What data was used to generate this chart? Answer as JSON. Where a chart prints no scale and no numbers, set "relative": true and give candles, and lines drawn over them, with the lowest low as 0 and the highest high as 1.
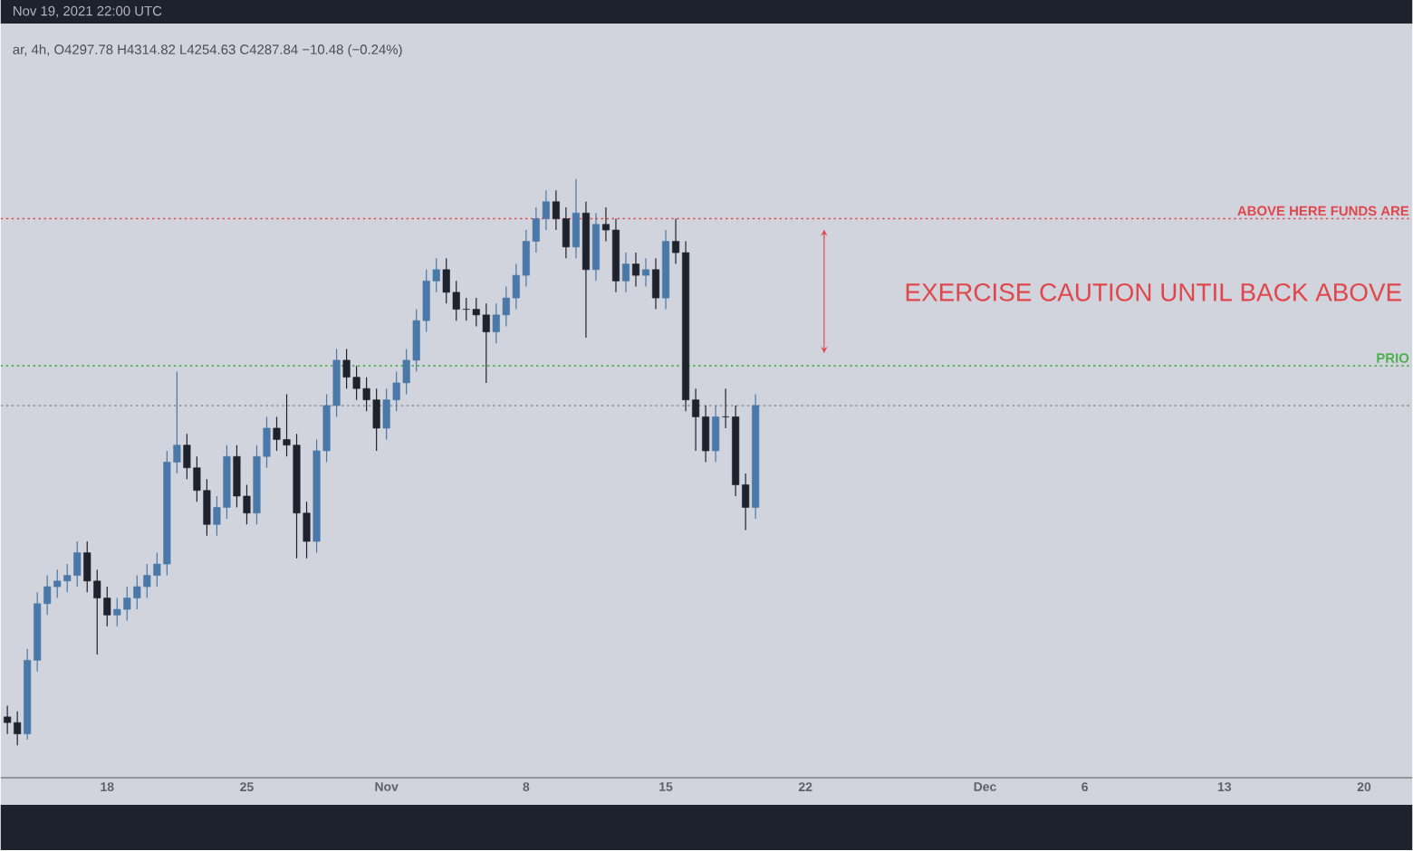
{
  "chart_data": {
    "type": "candlestick",
    "relative": true,
    "x": [
      "2021-10-13T00:00",
      "2021-10-13T12:00",
      "2021-10-14T00:00",
      "2021-10-14T12:00",
      "2021-10-15T00:00",
      "2021-10-15T12:00",
      "2021-10-16T00:00",
      "2021-10-16T12:00",
      "2021-10-17T00:00",
      "2021-10-17T12:00",
      "2021-10-18T00:00",
      "2021-10-18T12:00",
      "2021-10-19T00:00",
      "2021-10-19T12:00",
      "2021-10-20T00:00",
      "2021-10-20T12:00",
      "2021-10-21T00:00",
      "2021-10-21T12:00",
      "2021-10-22T00:00",
      "2021-10-22T12:00",
      "2021-10-23T00:00",
      "2021-10-23T12:00",
      "2021-10-24T00:00",
      "2021-10-24T12:00",
      "2021-10-25T00:00",
      "2021-10-25T12:00",
      "2021-10-26T00:00",
      "2021-10-26T12:00",
      "2021-10-27T00:00",
      "2021-10-27T12:00",
      "2021-10-28T00:00",
      "2021-10-28T12:00",
      "2021-10-29T00:00",
      "2021-10-29T12:00",
      "2021-10-30T00:00",
      "2021-10-30T12:00",
      "2021-10-31T00:00",
      "2021-10-31T12:00",
      "2021-11-01T00:00",
      "2021-11-01T12:00",
      "2021-11-02T00:00",
      "2021-11-02T12:00",
      "2021-11-03T00:00",
      "2021-11-03T12:00",
      "2021-11-04T00:00",
      "2021-11-04T12:00",
      "2021-11-05T00:00",
      "2021-11-05T12:00",
      "2021-11-06T00:00",
      "2021-11-06T12:00",
      "2021-11-07T00:00",
      "2021-11-07T12:00",
      "2021-11-08T00:00",
      "2021-11-08T12:00",
      "2021-11-09T00:00",
      "2021-11-09T12:00",
      "2021-11-10T00:00",
      "2021-11-10T12:00",
      "2021-11-11T00:00",
      "2021-11-11T12:00",
      "2021-11-12T00:00",
      "2021-11-12T12:00",
      "2021-11-13T00:00",
      "2021-11-13T12:00",
      "2021-11-14T00:00",
      "2021-11-14T12:00",
      "2021-11-15T00:00",
      "2021-11-15T12:00",
      "2021-11-16T00:00",
      "2021-11-16T12:00",
      "2021-11-17T00:00",
      "2021-11-17T12:00",
      "2021-11-18T00:00",
      "2021-11-18T12:00",
      "2021-11-19T00:00",
      "2021-11-19T12:00"
    ],
    "ohlc": [
      [
        0.05,
        0.07,
        0.02,
        0.04
      ],
      [
        0.04,
        0.06,
        0.0,
        0.02
      ],
      [
        0.02,
        0.17,
        0.01,
        0.15
      ],
      [
        0.15,
        0.27,
        0.13,
        0.25
      ],
      [
        0.25,
        0.3,
        0.23,
        0.28
      ],
      [
        0.28,
        0.31,
        0.26,
        0.29
      ],
      [
        0.29,
        0.32,
        0.27,
        0.3
      ],
      [
        0.3,
        0.36,
        0.28,
        0.34
      ],
      [
        0.34,
        0.36,
        0.27,
        0.29
      ],
      [
        0.29,
        0.31,
        0.16,
        0.26
      ],
      [
        0.26,
        0.28,
        0.21,
        0.23
      ],
      [
        0.23,
        0.26,
        0.21,
        0.24
      ],
      [
        0.24,
        0.28,
        0.22,
        0.26
      ],
      [
        0.26,
        0.3,
        0.24,
        0.28
      ],
      [
        0.28,
        0.32,
        0.26,
        0.3
      ],
      [
        0.3,
        0.34,
        0.28,
        0.32
      ],
      [
        0.32,
        0.52,
        0.3,
        0.5
      ],
      [
        0.5,
        0.66,
        0.48,
        0.53
      ],
      [
        0.53,
        0.55,
        0.47,
        0.49
      ],
      [
        0.49,
        0.51,
        0.43,
        0.45
      ],
      [
        0.45,
        0.47,
        0.37,
        0.39
      ],
      [
        0.39,
        0.44,
        0.37,
        0.42
      ],
      [
        0.42,
        0.53,
        0.4,
        0.51
      ],
      [
        0.51,
        0.53,
        0.42,
        0.44
      ],
      [
        0.44,
        0.46,
        0.39,
        0.41
      ],
      [
        0.41,
        0.53,
        0.39,
        0.51
      ],
      [
        0.51,
        0.58,
        0.49,
        0.56
      ],
      [
        0.56,
        0.58,
        0.52,
        0.54
      ],
      [
        0.54,
        0.62,
        0.51,
        0.53
      ],
      [
        0.53,
        0.55,
        0.33,
        0.41
      ],
      [
        0.41,
        0.43,
        0.33,
        0.36
      ],
      [
        0.36,
        0.54,
        0.34,
        0.52
      ],
      [
        0.52,
        0.62,
        0.5,
        0.6
      ],
      [
        0.6,
        0.7,
        0.58,
        0.68
      ],
      [
        0.68,
        0.7,
        0.63,
        0.65
      ],
      [
        0.65,
        0.67,
        0.61,
        0.63
      ],
      [
        0.63,
        0.65,
        0.59,
        0.61
      ],
      [
        0.61,
        0.63,
        0.52,
        0.56
      ],
      [
        0.56,
        0.63,
        0.54,
        0.61
      ],
      [
        0.61,
        0.66,
        0.59,
        0.64
      ],
      [
        0.64,
        0.7,
        0.62,
        0.68
      ],
      [
        0.68,
        0.77,
        0.66,
        0.75
      ],
      [
        0.75,
        0.84,
        0.73,
        0.82
      ],
      [
        0.82,
        0.86,
        0.8,
        0.84
      ],
      [
        0.84,
        0.86,
        0.78,
        0.8
      ],
      [
        0.8,
        0.82,
        0.75,
        0.77
      ],
      [
        0.77,
        0.79,
        0.75,
        0.77
      ],
      [
        0.77,
        0.79,
        0.74,
        0.76
      ],
      [
        0.76,
        0.78,
        0.64,
        0.73
      ],
      [
        0.73,
        0.78,
        0.71,
        0.76
      ],
      [
        0.76,
        0.81,
        0.74,
        0.79
      ],
      [
        0.79,
        0.85,
        0.77,
        0.83
      ],
      [
        0.83,
        0.91,
        0.81,
        0.89
      ],
      [
        0.89,
        0.95,
        0.87,
        0.93
      ],
      [
        0.93,
        0.98,
        0.91,
        0.96
      ],
      [
        0.96,
        0.98,
        0.91,
        0.93
      ],
      [
        0.93,
        0.95,
        0.86,
        0.88
      ],
      [
        0.88,
        1.0,
        0.86,
        0.94
      ],
      [
        0.94,
        0.96,
        0.72,
        0.84
      ],
      [
        0.84,
        0.94,
        0.82,
        0.92
      ],
      [
        0.92,
        0.95,
        0.89,
        0.91
      ],
      [
        0.91,
        0.93,
        0.8,
        0.82
      ],
      [
        0.82,
        0.87,
        0.8,
        0.85
      ],
      [
        0.85,
        0.87,
        0.81,
        0.83
      ],
      [
        0.83,
        0.86,
        0.81,
        0.84
      ],
      [
        0.84,
        0.86,
        0.77,
        0.79
      ],
      [
        0.79,
        0.91,
        0.77,
        0.89
      ],
      [
        0.89,
        0.93,
        0.85,
        0.87
      ],
      [
        0.87,
        0.89,
        0.59,
        0.61
      ],
      [
        0.61,
        0.63,
        0.52,
        0.58
      ],
      [
        0.58,
        0.6,
        0.5,
        0.52
      ],
      [
        0.52,
        0.6,
        0.5,
        0.58
      ],
      [
        0.58,
        0.63,
        0.56,
        0.58
      ],
      [
        0.58,
        0.6,
        0.44,
        0.46
      ],
      [
        0.46,
        0.48,
        0.38,
        0.42
      ],
      [
        0.42,
        0.62,
        0.4,
        0.6
      ]
    ],
    "colors": [
      "#1e222d",
      "#1e222d",
      "#4a78a8",
      "#4a78a8",
      "#4a78a8",
      "#4a78a8",
      "#4a78a8",
      "#4a78a8",
      "#1e222d",
      "#1e222d",
      "#1e222d",
      "#4a78a8",
      "#4a78a8",
      "#4a78a8",
      "#4a78a8",
      "#4a78a8",
      "#4a78a8",
      "#4a78a8",
      "#1e222d",
      "#1e222d",
      "#1e222d",
      "#4a78a8",
      "#4a78a8",
      "#1e222d",
      "#1e222d",
      "#4a78a8",
      "#4a78a8",
      "#1e222d",
      "#1e222d",
      "#1e222d",
      "#1e222d",
      "#4a78a8",
      "#4a78a8",
      "#4a78a8",
      "#1e222d",
      "#1e222d",
      "#1e222d",
      "#1e222d",
      "#4a78a8",
      "#4a78a8",
      "#4a78a8",
      "#4a78a8",
      "#4a78a8",
      "#4a78a8",
      "#1e222d",
      "#1e222d",
      "#1e222d",
      "#1e222d",
      "#1e222d",
      "#4a78a8",
      "#4a78a8",
      "#4a78a8",
      "#4a78a8",
      "#4a78a8",
      "#4a78a8",
      "#1e222d",
      "#1e222d",
      "#4a78a8",
      "#1e222d",
      "#4a78a8",
      "#1e222d",
      "#1e222d",
      "#4a78a8",
      "#1e222d",
      "#4a78a8",
      "#1e222d",
      "#4a78a8",
      "#1e222d",
      "#1e222d",
      "#1e222d",
      "#1e222d",
      "#4a78a8",
      "#1e222d",
      "#1e222d",
      "#1e222d",
      "#4a78a8"
    ],
    "xlim": [
      "2021-10-12T16:00",
      "2021-12-22T10:00"
    ],
    "xticks": [
      {
        "value": "2021-10-18",
        "label": "18"
      },
      {
        "value": "2021-10-25",
        "label": "25"
      },
      {
        "value": "2021-11-01",
        "label": "Nov"
      },
      {
        "value": "2021-11-08",
        "label": "8"
      },
      {
        "value": "2021-11-15",
        "label": "15"
      },
      {
        "value": "2021-11-22",
        "label": "22"
      },
      {
        "value": "2021-12-01",
        "label": "Dec"
      },
      {
        "value": "2021-12-06",
        "label": "6"
      },
      {
        "value": "2021-12-13",
        "label": "13"
      },
      {
        "value": "2021-12-20",
        "label": "20"
      }
    ],
    "ref_lines": [
      {
        "axis": "y",
        "value": 0.93,
        "label": "ABOVE HERE FUNDS ARE",
        "color": "#e0474c",
        "line_style": "dotted"
      },
      {
        "axis": "y",
        "value": 0.67,
        "label": "PRIO",
        "color": "#4caf50",
        "line_style": "dotted"
      },
      {
        "axis": "y",
        "value": 0.6,
        "color": "#8a8d96",
        "line_style": "dotted"
      }
    ],
    "annotations": [
      "Nov 19, 2021 22:00 UTC",
      "ar, 4h, O4297.78 H4314.82 L4254.63 C4287.84 −10.48 (−0.24%)",
      "EXERCISE CAUTION UNTIL BACK ABOVE"
    ]
  }
}
